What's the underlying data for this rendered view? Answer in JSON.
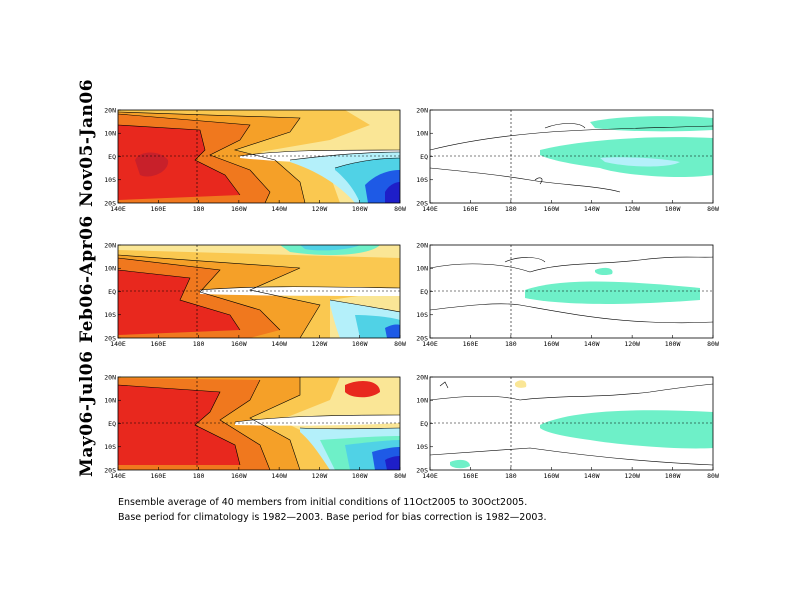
{
  "rows": [
    {
      "label": "Nov05-Jan06"
    },
    {
      "label": "Feb06-Apr06"
    },
    {
      "label": "May06-Jul06"
    }
  ],
  "axes": {
    "x_ticks": [
      "140E",
      "160E",
      "180",
      "160W",
      "140W",
      "120W",
      "100W",
      "80W"
    ],
    "y_ticks": [
      "20N",
      "10N",
      "EQ",
      "10S",
      "20S"
    ]
  },
  "colors": {
    "dark_red": "#c8202a",
    "red": "#e8281e",
    "orange_red": "#f0781e",
    "orange": "#f5a028",
    "light_orange": "#fac850",
    "yellow": "#fae696",
    "pale_blue": "#b4f0fa",
    "cyan": "#50d2e6",
    "blue": "#1e5ae6",
    "dark_blue": "#1e1ec8",
    "green_shade": "#6ef0c8"
  },
  "footer": {
    "line1": "Ensemble average of 40 members from initial conditions of 11Oct2005 to 30Oct2005.",
    "line2": "Base period for climatology is 1982—2003. Base period for bias correction is 1982—2003."
  }
}
